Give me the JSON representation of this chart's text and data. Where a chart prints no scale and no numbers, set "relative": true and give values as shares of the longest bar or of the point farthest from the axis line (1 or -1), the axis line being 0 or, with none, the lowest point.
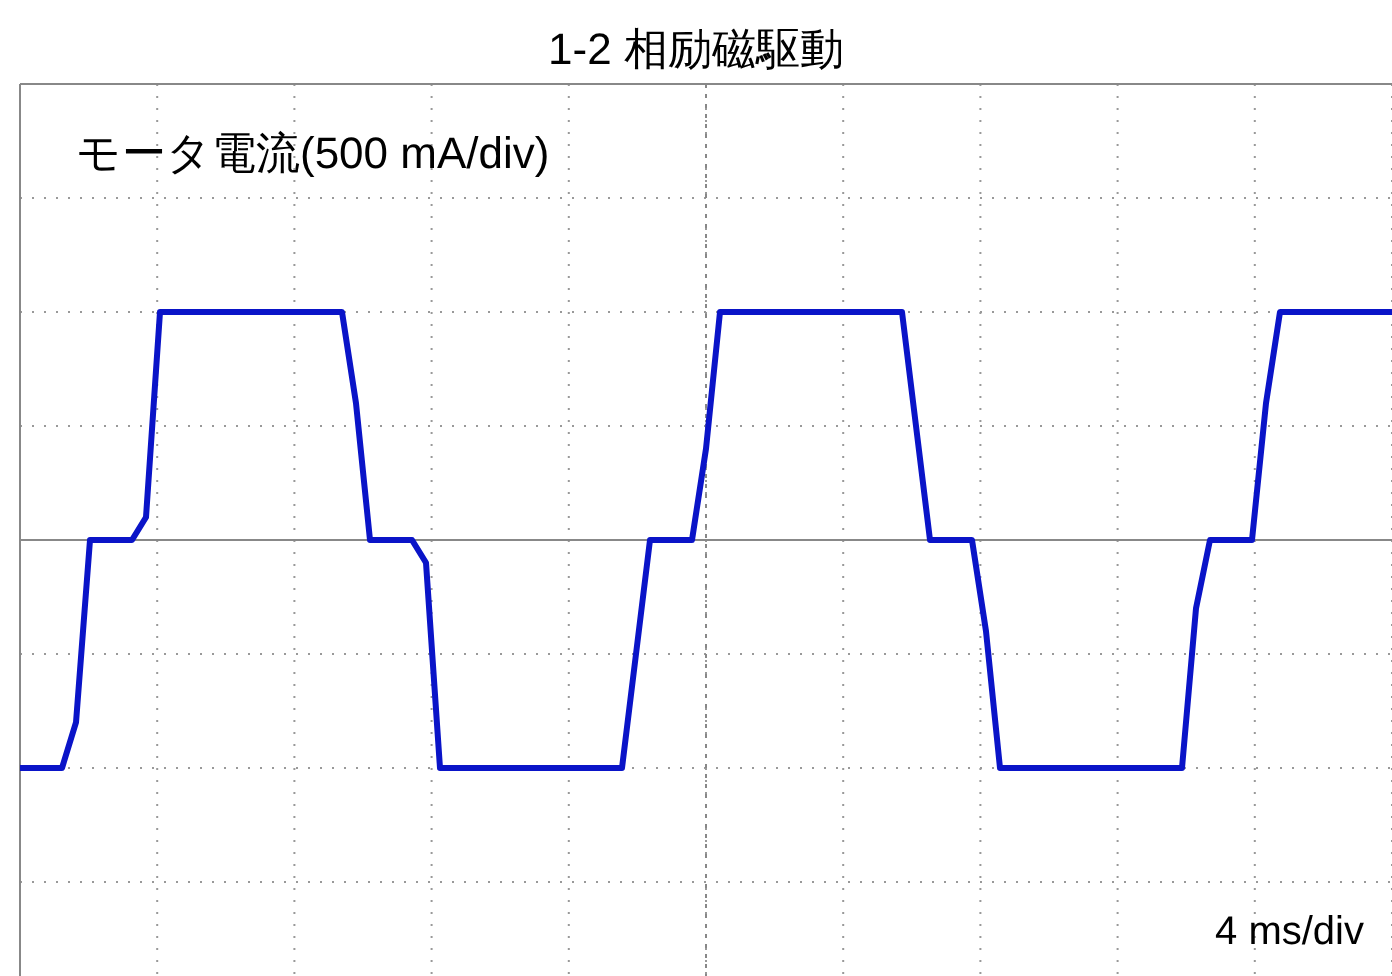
{
  "chart_data": {
    "type": "line",
    "title": "1-2 相励磁駆動",
    "annotations": [
      "モータ電流(500 mA/div)",
      "4 ms/div"
    ],
    "relative": true,
    "grid": true,
    "categories": [
      null,
      null,
      null,
      null,
      null,
      null,
      null,
      null,
      null,
      null,
      null,
      null,
      null,
      null,
      null,
      null,
      null,
      null,
      null,
      null,
      null,
      null,
      null,
      null,
      null,
      null,
      null,
      null,
      null,
      null,
      null,
      null,
      null,
      null,
      null,
      null,
      null,
      null,
      null,
      null,
      null,
      null,
      null,
      null,
      null,
      null,
      null,
      null,
      null,
      null,
      null,
      null,
      null,
      null,
      null,
      null,
      null,
      null,
      null,
      null,
      null,
      null,
      null,
      null,
      null,
      null,
      null,
      null,
      null,
      null,
      null,
      null,
      null,
      null,
      null,
      null,
      null,
      null,
      null,
      null,
      null,
      null,
      null,
      null,
      null,
      null,
      null,
      null,
      null,
      null,
      null,
      null,
      null,
      null,
      null,
      null,
      null,
      null,
      null
    ],
    "series": [
      {
        "color": "#0a14c8",
        "values": [
          -1,
          -1,
          -1,
          -1,
          -0.8,
          0,
          0,
          0,
          0,
          0.1,
          1,
          1,
          1,
          1,
          1,
          1,
          1,
          1,
          1,
          1,
          1,
          1,
          1,
          1,
          0.6,
          0,
          0,
          0,
          0,
          -0.1,
          -1,
          -1,
          -1,
          -1,
          -1,
          -1,
          -1,
          -1,
          -1,
          -1,
          -1,
          -1,
          -1,
          -1,
          -0.5,
          0,
          0,
          0,
          0,
          0.4,
          1,
          1,
          1,
          1,
          1,
          1,
          1,
          1,
          1,
          1,
          1,
          1,
          1,
          1,
          0.5,
          0,
          0,
          0,
          0,
          -0.4,
          -1,
          -1,
          -1,
          -1,
          -1,
          -1,
          -1,
          -1,
          -1,
          -1,
          -1,
          -1,
          -1,
          -1,
          -0.3,
          0,
          0,
          0,
          0,
          0.6,
          1,
          1,
          1,
          1,
          1,
          1,
          1,
          1,
          1
        ]
      }
    ]
  }
}
